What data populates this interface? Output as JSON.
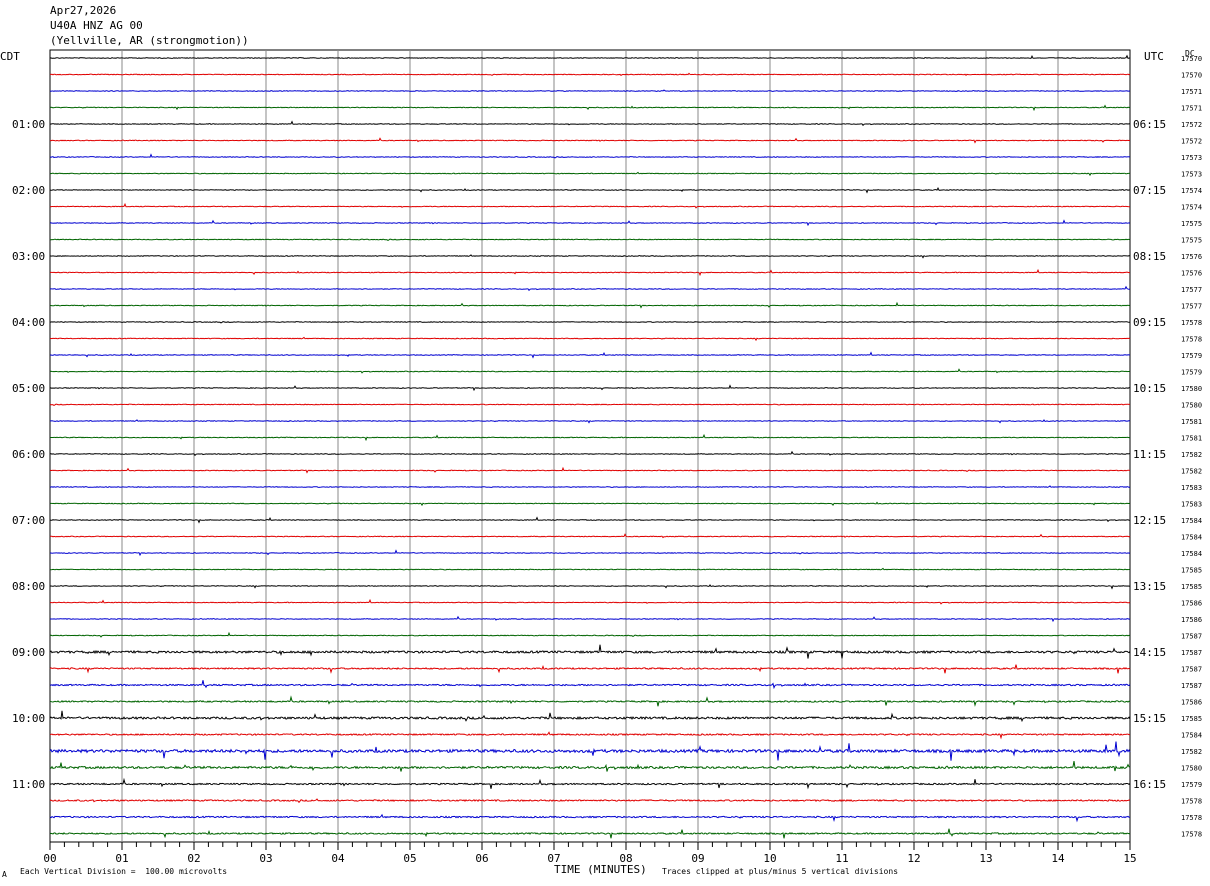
{
  "header": {
    "date": "Apr27,2026",
    "station": "U40A HNZ AG 00",
    "location": "(Yellville, AR (strongmotion))"
  },
  "left_axis_title": "CDT",
  "right_axis_title": "UTC",
  "right_corner_label": "DC",
  "footer": {
    "scale_note": "Each Vertical Division =  100.00 microvolts",
    "xlabel": "TIME (MINUTES)",
    "clip_note": "Traces clipped at plus/minus 5 vertical divisions",
    "corner_mark": "A"
  },
  "chart_data": {
    "type": "line",
    "title": "",
    "xlabel": "TIME (MINUTES)",
    "xlim": [
      0,
      15
    ],
    "x_ticks": [
      "00",
      "01",
      "02",
      "03",
      "04",
      "05",
      "06",
      "07",
      "08",
      "09",
      "10",
      "11",
      "12",
      "13",
      "14",
      "15"
    ],
    "rows_per_hour": 4,
    "trace_colors": [
      "#000000",
      "#e00000",
      "#0000d0",
      "#006400"
    ],
    "left_hour_labels": [
      "01:00",
      "02:00",
      "03:00",
      "04:00",
      "05:00",
      "06:00",
      "07:00",
      "08:00",
      "09:00",
      "10:00",
      "11:00"
    ],
    "right_hour_labels": [
      "06:15",
      "07:15",
      "08:15",
      "09:15",
      "10:15",
      "11:15",
      "12:15",
      "13:15",
      "14:15",
      "15:15",
      "16:15"
    ],
    "hour_label_row_start": 4,
    "dc_offsets": [
      "17570",
      "17570",
      "17571",
      "17571",
      "17572",
      "17572",
      "17573",
      "17573",
      "17574",
      "17574",
      "17575",
      "17575",
      "17576",
      "17576",
      "17577",
      "17577",
      "17578",
      "17578",
      "17579",
      "17579",
      "17580",
      "17580",
      "17581",
      "17581",
      "17582",
      "17582",
      "17583",
      "17583",
      "17584",
      "17584",
      "17584",
      "17585",
      "17585",
      "17586",
      "17586",
      "17587",
      "17587",
      "17587",
      "17587",
      "17586",
      "17585",
      "17584",
      "17582",
      "17580",
      "17579",
      "17578",
      "17578",
      "17578"
    ],
    "row_activity": [
      1,
      1,
      1,
      1,
      1,
      1,
      1,
      1,
      1,
      1,
      1,
      1,
      1,
      1,
      1,
      1,
      1,
      1,
      1,
      1,
      1,
      1,
      1,
      1,
      1,
      1,
      1,
      1,
      1,
      1,
      1,
      1,
      1,
      1,
      1,
      1,
      3,
      2,
      2,
      2,
      3,
      2,
      4,
      3,
      2,
      2,
      2,
      2
    ]
  }
}
